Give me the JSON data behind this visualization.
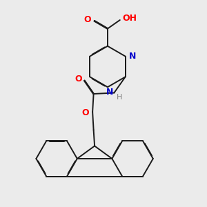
{
  "background_color": "#ebebeb",
  "bond_color": "#1a1a1a",
  "atom_colors": {
    "O": "#ff0000",
    "N": "#0000cc",
    "H_gray": "#808080",
    "C": "#1a1a1a"
  },
  "figsize": [
    3.0,
    3.0
  ],
  "dpi": 100
}
